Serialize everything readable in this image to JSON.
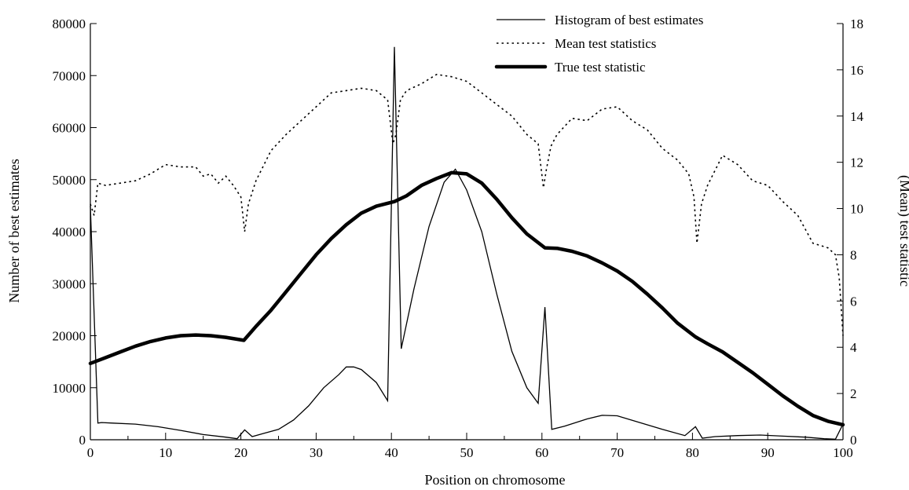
{
  "chart_data": {
    "type": "line",
    "xlabel": "Position on chromosome",
    "ylabel_left": "Number of best estimates",
    "ylabel_right": "(Mean) test statistic",
    "xlim": [
      0,
      100
    ],
    "ylim_left": [
      0,
      80000
    ],
    "ylim_right": [
      0,
      18
    ],
    "x_ticks": [
      0,
      10,
      20,
      30,
      40,
      50,
      60,
      70,
      80,
      90,
      100
    ],
    "y_ticks_left": [
      0,
      10000,
      20000,
      30000,
      40000,
      50000,
      60000,
      70000,
      80000
    ],
    "y_ticks_right": [
      0,
      2,
      4,
      6,
      8,
      10,
      12,
      14,
      16,
      18
    ],
    "grid": false,
    "legend_position": "top-right",
    "series": [
      {
        "name": "Histogram of best estimates",
        "axis": "left",
        "style": "thin-solid",
        "x": [
          0,
          1,
          1.5,
          3,
          6,
          9,
          12,
          15,
          18,
          19.5,
          20.5,
          21.5,
          23,
          25,
          27,
          29,
          31,
          33,
          34,
          35,
          36,
          38,
          39.5,
          40.4,
          41.3,
          43,
          45,
          47,
          48.5,
          50,
          52,
          54,
          56,
          58,
          59.5,
          60.4,
          61.3,
          63,
          66,
          68,
          70,
          73,
          76,
          79,
          80.4,
          81.3,
          83,
          86,
          89,
          92,
          95,
          97.5,
          99,
          100
        ],
        "y": [
          45000,
          3200,
          3300,
          3200,
          3000,
          2500,
          1800,
          1000,
          500,
          200,
          1900,
          600,
          1200,
          2000,
          3800,
          6500,
          10000,
          12500,
          14000,
          14000,
          13500,
          11000,
          7500,
          75500,
          17500,
          29000,
          41000,
          49500,
          52000,
          48000,
          40000,
          28000,
          17000,
          10000,
          7000,
          25500,
          2000,
          2600,
          4000,
          4700,
          4600,
          3300,
          2000,
          800,
          2500,
          300,
          600,
          800,
          900,
          700,
          500,
          200,
          100,
          3000
        ]
      },
      {
        "name": "Mean test statistics",
        "axis": "right",
        "style": "dotted",
        "x": [
          0,
          0.5,
          1,
          2,
          4,
          6,
          8,
          10,
          12,
          14,
          15,
          16,
          17,
          18,
          19,
          20,
          20.5,
          21,
          22,
          24,
          26,
          28,
          30,
          32,
          34,
          36,
          38,
          39.5,
          40.2,
          40.6,
          41.2,
          42,
          44,
          46,
          48,
          50,
          52,
          54,
          56,
          58,
          59.5,
          60.2,
          60.6,
          61.2,
          62,
          64,
          66,
          68,
          70,
          72,
          74,
          76,
          78,
          79.5,
          80.2,
          80.6,
          81.2,
          82,
          84,
          86,
          88,
          90,
          92,
          94,
          96,
          98,
          99,
          99.5,
          100
        ],
        "y": [
          10.2,
          9.7,
          11.1,
          11.0,
          11.1,
          11.2,
          11.5,
          11.9,
          11.8,
          11.8,
          11.4,
          11.5,
          11.1,
          11.4,
          11.0,
          10.5,
          9.0,
          10.2,
          11.2,
          12.5,
          13.2,
          13.8,
          14.4,
          15.0,
          15.1,
          15.2,
          15.1,
          14.7,
          12.8,
          13.2,
          14.7,
          15.1,
          15.4,
          15.8,
          15.7,
          15.5,
          15.0,
          14.5,
          14.0,
          13.2,
          12.8,
          10.9,
          11.7,
          12.7,
          13.2,
          13.9,
          13.8,
          14.3,
          14.4,
          13.8,
          13.4,
          12.6,
          12.1,
          11.5,
          10.5,
          8.5,
          10.2,
          11.0,
          12.3,
          11.9,
          11.2,
          11.0,
          10.3,
          9.7,
          8.5,
          8.3,
          8.0,
          7.0,
          4.5
        ]
      },
      {
        "name": "True test statistic",
        "axis": "right",
        "style": "thick-solid",
        "x": [
          0,
          2,
          4,
          6,
          8,
          10,
          12,
          14,
          16,
          18,
          20.4,
          22,
          24,
          26,
          28,
          30,
          32,
          34,
          36,
          38,
          40.4,
          42,
          44,
          46,
          48,
          50,
          52,
          54,
          56,
          58,
          60.4,
          62,
          64,
          66,
          68,
          70,
          72,
          74,
          76,
          78,
          80.4,
          82,
          84,
          86,
          88,
          90,
          92,
          94,
          96,
          98,
          100
        ],
        "y": [
          3.3,
          3.55,
          3.8,
          4.05,
          4.25,
          4.4,
          4.5,
          4.53,
          4.5,
          4.43,
          4.3,
          4.9,
          5.6,
          6.4,
          7.2,
          8.0,
          8.7,
          9.3,
          9.8,
          10.1,
          10.3,
          10.55,
          11.0,
          11.3,
          11.55,
          11.5,
          11.1,
          10.4,
          9.6,
          8.9,
          8.3,
          8.28,
          8.15,
          7.95,
          7.65,
          7.3,
          6.85,
          6.3,
          5.7,
          5.05,
          4.45,
          4.15,
          3.8,
          3.35,
          2.9,
          2.4,
          1.9,
          1.45,
          1.05,
          0.8,
          0.65
        ]
      }
    ]
  }
}
